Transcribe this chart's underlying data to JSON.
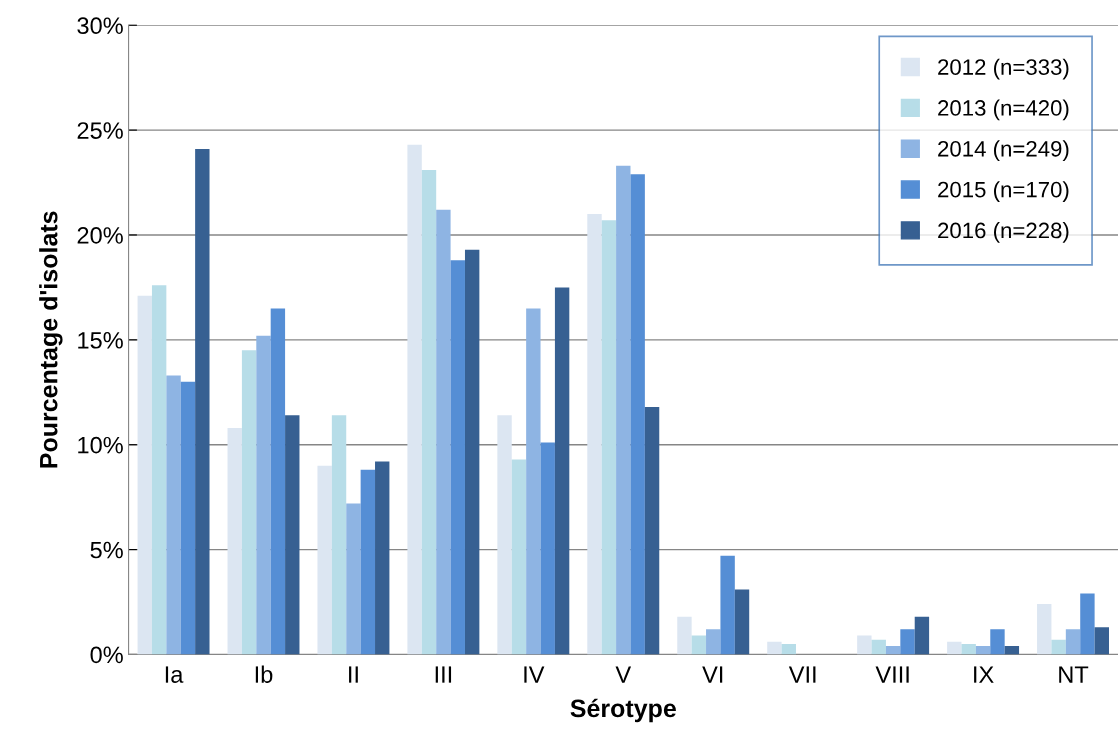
{
  "chart_data": {
    "type": "bar",
    "xlabel": "Sérotype",
    "ylabel": "Pourcentage d'isolats",
    "categories": [
      "Ia",
      "Ib",
      "II",
      "III",
      "IV",
      "V",
      "VI",
      "VII",
      "VIII",
      "IX",
      "NT"
    ],
    "series": [
      {
        "name": "2012 (n=333)",
        "color": "#dce6f2",
        "values": [
          17.1,
          10.8,
          9.0,
          24.3,
          11.4,
          21.0,
          1.8,
          0.6,
          0.9,
          0.6,
          2.4
        ]
      },
      {
        "name": "2013 (n=420)",
        "color": "#b7dde8",
        "values": [
          17.6,
          14.5,
          11.4,
          23.1,
          9.3,
          20.7,
          0.9,
          0.5,
          0.7,
          0.5,
          0.7
        ]
      },
      {
        "name": "2014 (n=249)",
        "color": "#8eb4e3",
        "values": [
          13.3,
          15.2,
          7.2,
          21.2,
          16.5,
          23.3,
          1.2,
          0,
          0.4,
          0.4,
          1.2
        ]
      },
      {
        "name": "2015 (n=170)",
        "color": "#558ed5",
        "values": [
          13.0,
          16.5,
          8.8,
          18.8,
          10.1,
          22.9,
          4.7,
          0,
          1.2,
          1.2,
          2.9
        ]
      },
      {
        "name": "2016 (n=228)",
        "color": "#376092",
        "values": [
          24.1,
          11.4,
          9.2,
          19.3,
          17.5,
          11.8,
          3.1,
          0,
          1.8,
          0.4,
          1.3
        ]
      }
    ],
    "ylim": [
      0,
      30
    ],
    "yticks": [
      {
        "value": 0,
        "label": "0%"
      },
      {
        "value": 5,
        "label": "5%"
      },
      {
        "value": 10,
        "label": "10%"
      },
      {
        "value": 15,
        "label": "15%"
      },
      {
        "value": 20,
        "label": "20%"
      },
      {
        "value": 25,
        "label": "25%"
      },
      {
        "value": 30,
        "label": "30%"
      }
    ],
    "grid": "y",
    "legend": "top right"
  }
}
